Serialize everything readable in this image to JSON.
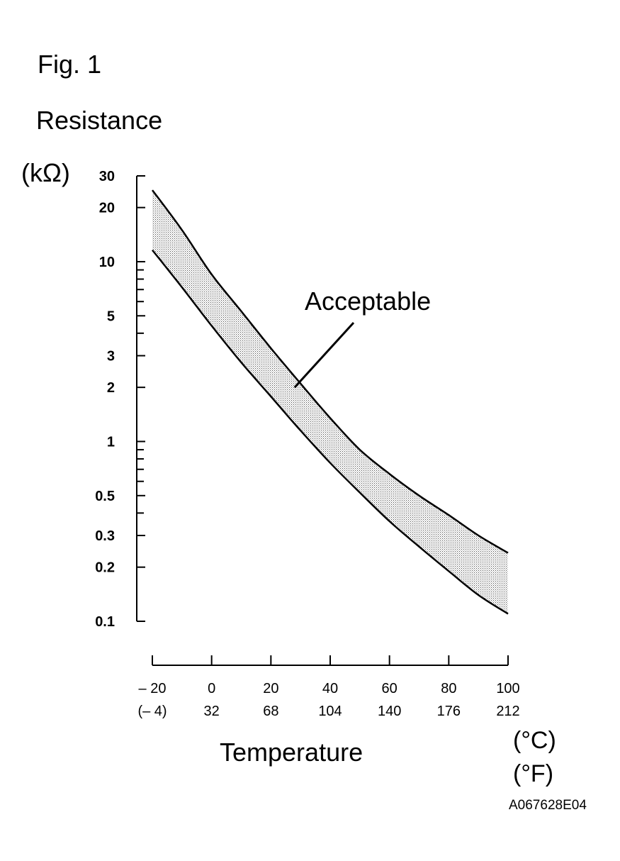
{
  "figure": {
    "label": "Fig. 1",
    "id_code": "A067628E04"
  },
  "colors": {
    "ink": "#000000",
    "band_fill": "#bdbdbd",
    "background": "#ffffff"
  },
  "chart_data": {
    "type": "area",
    "title": "",
    "ylabel": "Resistance",
    "ylabel_unit": "(kΩ)",
    "xlabel": "Temperature",
    "x_unit_c": "(°C)",
    "x_unit_f": "(°F)",
    "y_scale": "log",
    "ylim": [
      0.1,
      30
    ],
    "xlim": [
      -20,
      100
    ],
    "y_ticks": [
      0.1,
      0.2,
      0.3,
      0.5,
      1,
      2,
      3,
      5,
      10,
      20,
      30
    ],
    "y_tick_labels": [
      "0.1",
      "0.2",
      "0.3",
      "0.5",
      "1",
      "2",
      "3",
      "5",
      "10",
      "20",
      "30"
    ],
    "y_minor_ticks": [
      0.4,
      0.6,
      0.7,
      0.8,
      0.9,
      4,
      6,
      7,
      8,
      9
    ],
    "x_ticks": [
      -20,
      0,
      20,
      40,
      60,
      80,
      100
    ],
    "x_tick_labels_c": [
      "– 20",
      "0",
      "20",
      "40",
      "60",
      "80",
      "100"
    ],
    "x_tick_labels_f": [
      "(– 4)",
      "32",
      "68",
      "104",
      "140",
      "176",
      "212"
    ],
    "grid": false,
    "series": [
      {
        "role": "upper",
        "x": [
          -20,
          -10,
          0,
          10,
          20,
          30,
          40,
          50,
          60,
          70,
          80,
          90,
          100
        ],
        "y": [
          25,
          15,
          8.5,
          5.3,
          3.3,
          2.1,
          1.35,
          0.9,
          0.66,
          0.5,
          0.39,
          0.3,
          0.24
        ]
      },
      {
        "role": "lower",
        "x": [
          -20,
          -10,
          0,
          10,
          20,
          30,
          40,
          50,
          60,
          70,
          80,
          90,
          100
        ],
        "y": [
          11.6,
          7.2,
          4.4,
          2.75,
          1.78,
          1.15,
          0.76,
          0.52,
          0.36,
          0.26,
          0.19,
          0.14,
          0.11
        ]
      }
    ],
    "annotations": [
      {
        "text": "Acceptable",
        "points_to_x": 28,
        "points_to_y": 2.0
      }
    ]
  }
}
